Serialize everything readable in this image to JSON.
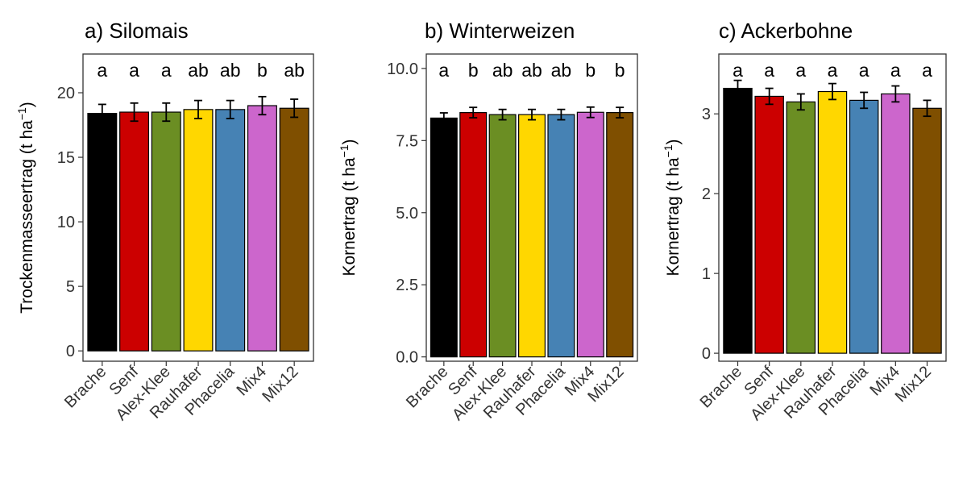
{
  "chart_data": [
    {
      "type": "bar",
      "title": "a) Silomais",
      "ylabel": "Trockenmasseertrag (t ha",
      "ylabel_exp": "−1",
      "ylabel_close": ")",
      "ylim": [
        -0.8,
        23
      ],
      "yticks": [
        0,
        5,
        10,
        15,
        20
      ],
      "ytick_labels": [
        "0",
        "5",
        "10",
        "15",
        "20"
      ],
      "categories": [
        "Brache",
        "Senf",
        "Alex-Klee",
        "Rauhafer",
        "Phacelia",
        "Mix4",
        "Mix12"
      ],
      "values": [
        18.4,
        18.5,
        18.5,
        18.7,
        18.7,
        19.0,
        18.8
      ],
      "errors": [
        0.7,
        0.7,
        0.7,
        0.7,
        0.7,
        0.7,
        0.7
      ],
      "letters": [
        "a",
        "a",
        "a",
        "ab",
        "ab",
        "b",
        "ab"
      ],
      "colors": [
        "#000000",
        "#CC0000",
        "#6B8E23",
        "#FFD700",
        "#4682B4",
        "#CC66CC",
        "#7F4F00"
      ],
      "grid": false
    },
    {
      "type": "bar",
      "title": "b) Winterweizen",
      "ylabel": "Kornertrag (t ha",
      "ylabel_exp": "−1",
      "ylabel_close": ")",
      "ylim": [
        -0.15,
        10.5
      ],
      "yticks": [
        0,
        2.5,
        5,
        7.5,
        10
      ],
      "ytick_labels": [
        "0.0",
        "2.5",
        "5.0",
        "7.5",
        "10.0"
      ],
      "categories": [
        "Brache",
        "Senf",
        "Alex-Klee",
        "Rauhafer",
        "Phacelia",
        "Mix4",
        "Mix12"
      ],
      "values": [
        8.28,
        8.47,
        8.4,
        8.4,
        8.4,
        8.48,
        8.47
      ],
      "errors": [
        0.18,
        0.18,
        0.18,
        0.18,
        0.18,
        0.18,
        0.18
      ],
      "letters": [
        "a",
        "b",
        "ab",
        "ab",
        "ab",
        "b",
        "b"
      ],
      "colors": [
        "#000000",
        "#CC0000",
        "#6B8E23",
        "#FFD700",
        "#4682B4",
        "#CC66CC",
        "#7F4F00"
      ],
      "grid": false
    },
    {
      "type": "bar",
      "title": "c) Ackerbohne",
      "ylabel": "Kornertrag (t ha",
      "ylabel_exp": "−1",
      "ylabel_close": ")",
      "ylim": [
        -0.1,
        3.75
      ],
      "yticks": [
        0,
        1,
        2,
        3
      ],
      "ytick_labels": [
        "0",
        "1",
        "2",
        "3"
      ],
      "categories": [
        "Brache",
        "Senf",
        "Alex-Klee",
        "Rauhafer",
        "Phacelia",
        "Mix4",
        "Mix12"
      ],
      "values": [
        3.32,
        3.22,
        3.15,
        3.28,
        3.17,
        3.25,
        3.07
      ],
      "errors": [
        0.1,
        0.1,
        0.1,
        0.1,
        0.1,
        0.1,
        0.1
      ],
      "letters": [
        "a",
        "a",
        "a",
        "a",
        "a",
        "a",
        "a"
      ],
      "colors": [
        "#000000",
        "#CC0000",
        "#6B8E23",
        "#FFD700",
        "#4682B4",
        "#CC66CC",
        "#7F4F00"
      ],
      "grid": false
    }
  ]
}
